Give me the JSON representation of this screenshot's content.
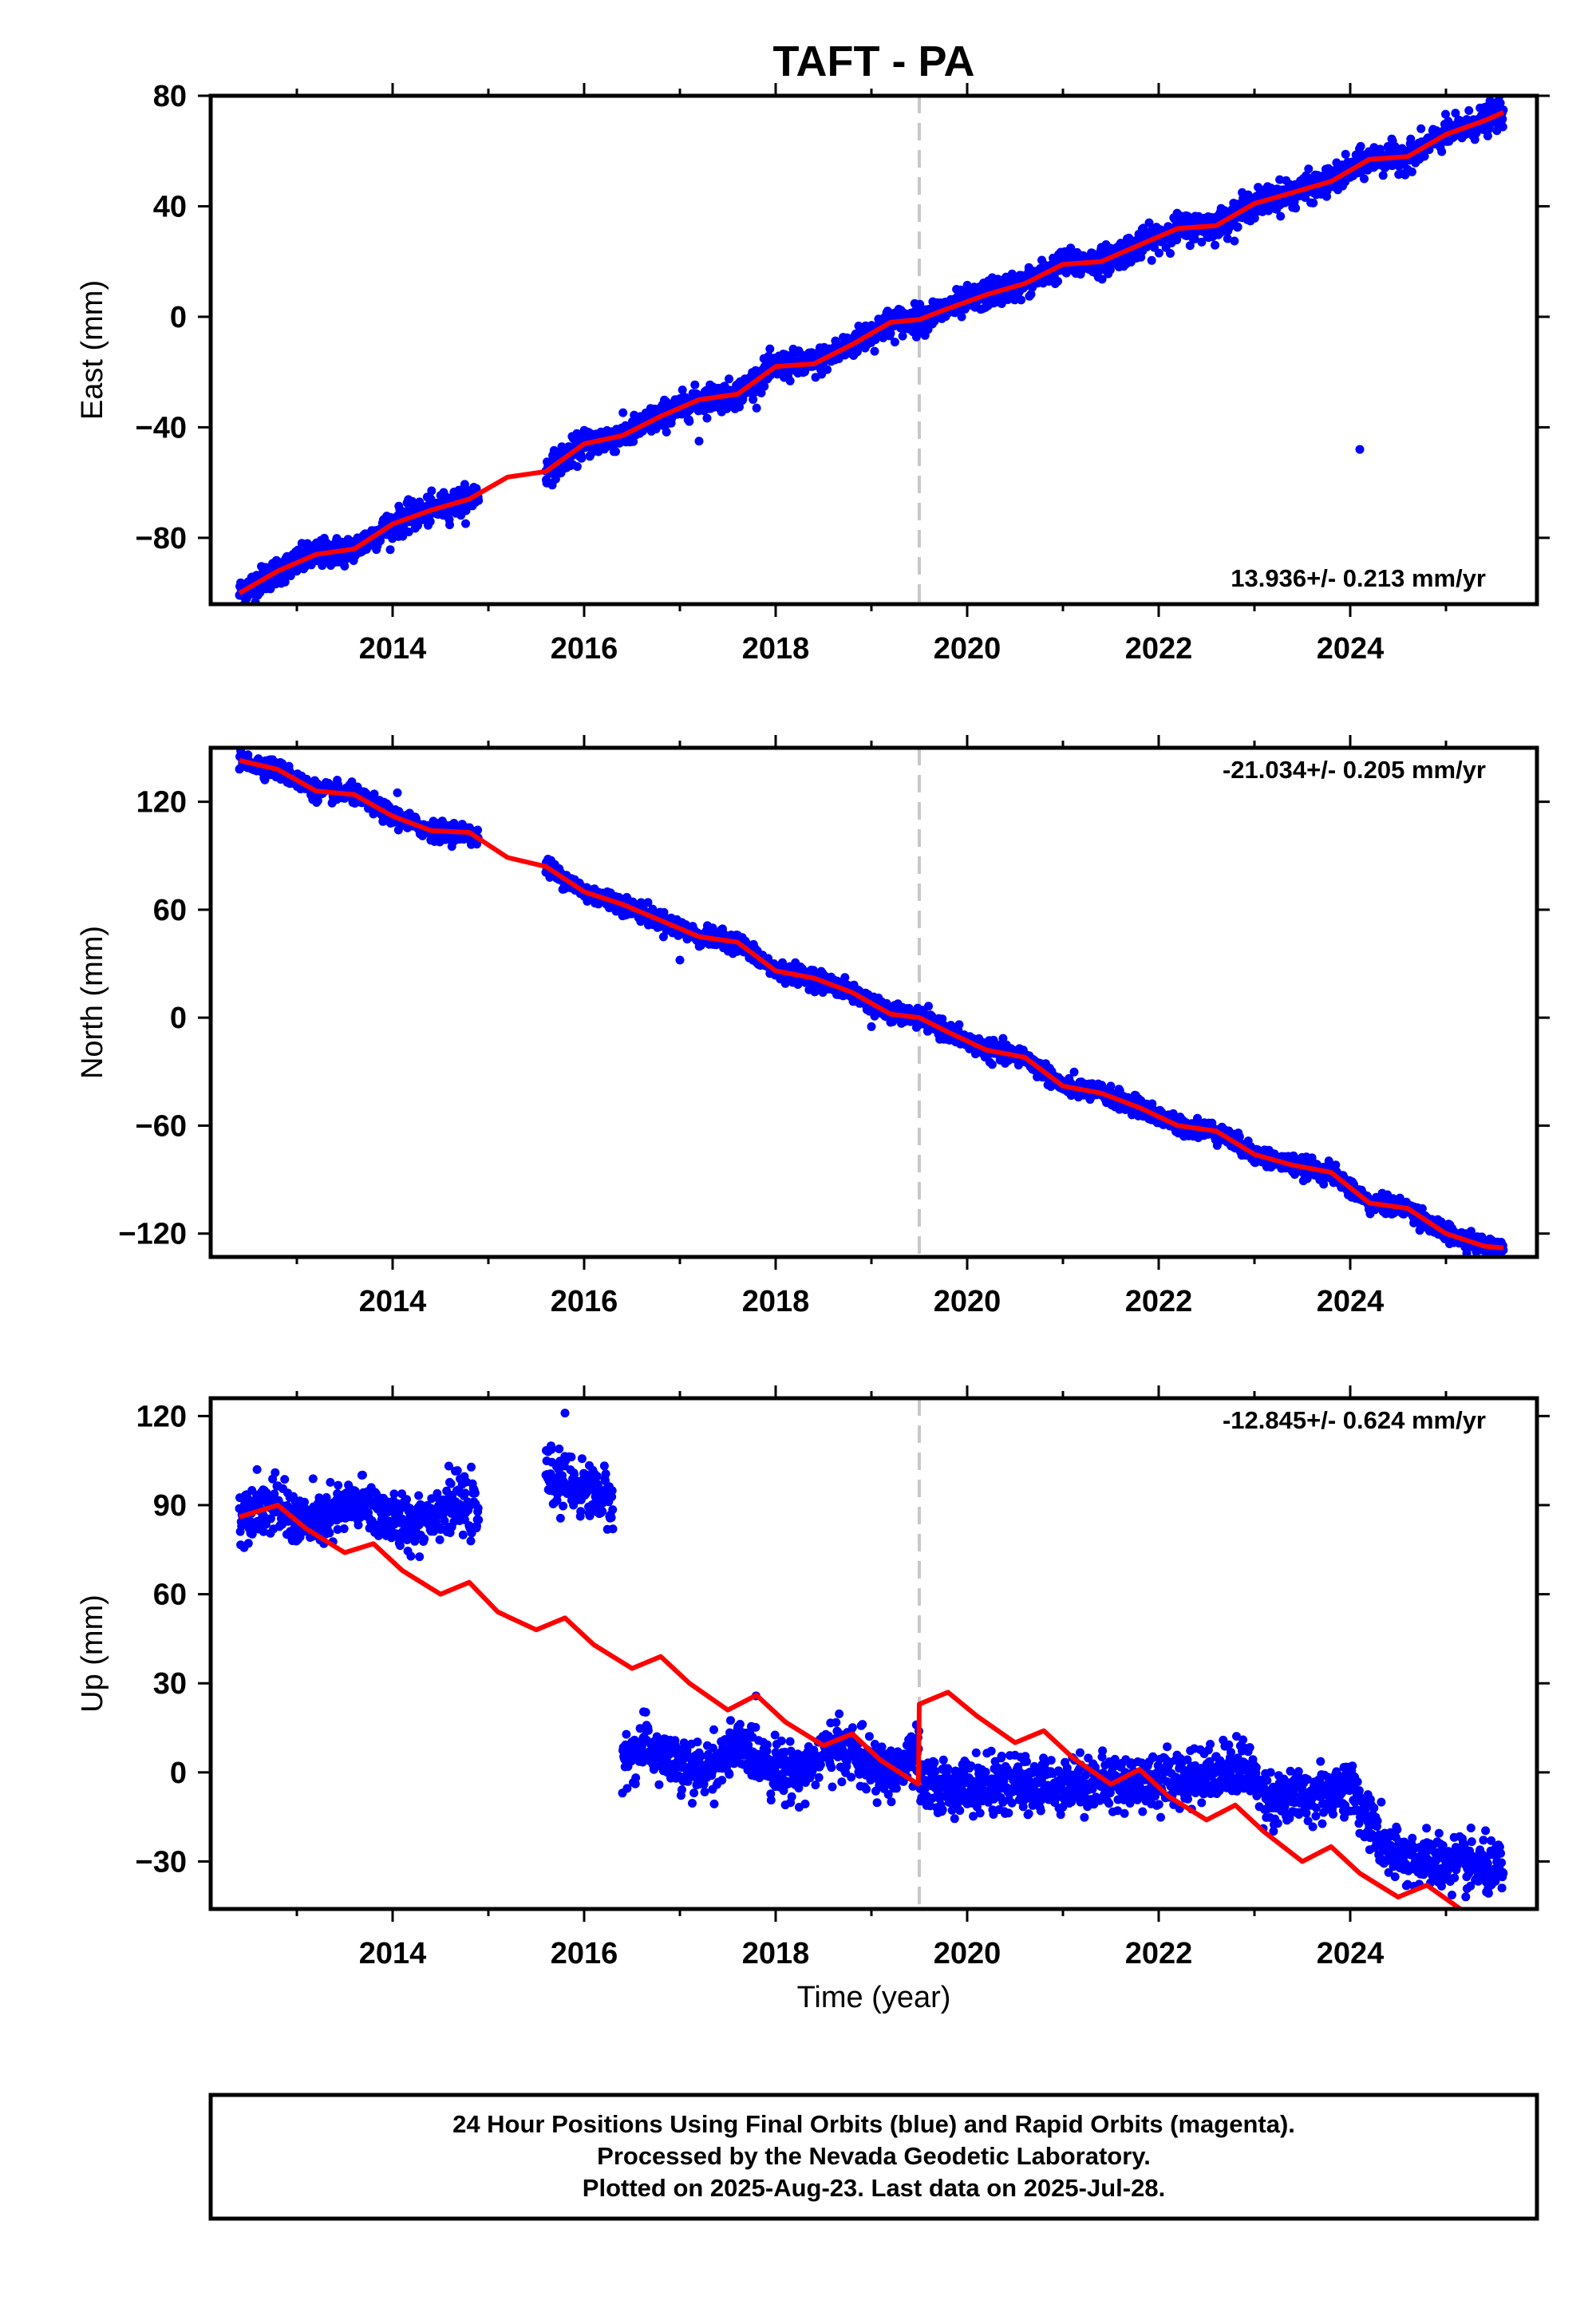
{
  "title": "TAFT - PA",
  "xlabel": "Time (year)",
  "footer": {
    "line1": "24 Hour Positions Using Final Orbits (blue) and Rapid Orbits (magenta).",
    "line2": "Processed by the Nevada Geodetic Laboratory.",
    "line3": "Plotted on 2025-Aug-23. Last data on 2025-Jul-28."
  },
  "colors": {
    "data": "#0000ff",
    "model": "#ff0000",
    "step": "#c8c8c8",
    "frame": "#000000"
  },
  "chart_data": [
    {
      "type": "scatter",
      "ylabel": "East (mm)",
      "rate_label": "13.936+/- 0.213 mm/yr",
      "xlim": [
        2012.1,
        2025.95
      ],
      "ylim": [
        -104,
        80
      ],
      "xticks": [
        2014,
        2016,
        2018,
        2020,
        2022,
        2024
      ],
      "xtick_labels": [
        "2014",
        "2016",
        "2018",
        "2020",
        "2022",
        "2024"
      ],
      "yticks": [
        -80,
        -40,
        0,
        40,
        80
      ],
      "ytick_labels": [
        "−80",
        "−40",
        "0",
        "40",
        "80"
      ],
      "step_epoch": 2019.5,
      "gaps": [
        [
          2014.9,
          2015.6
        ]
      ],
      "outliers": [
        [
          2017.2,
          -45
        ],
        [
          2024.1,
          -48
        ],
        [
          2019.2,
          -6
        ]
      ],
      "series": [
        {
          "role": "model",
          "x": [
            2012.4,
            2012.8,
            2013.2,
            2013.6,
            2014.0,
            2014.4,
            2014.8,
            2015.2,
            2015.6,
            2016.0,
            2016.4,
            2016.8,
            2017.2,
            2017.6,
            2018.0,
            2018.4,
            2018.8,
            2019.2,
            2019.5,
            2019.8,
            2020.2,
            2020.6,
            2021.0,
            2021.4,
            2021.8,
            2022.2,
            2022.6,
            2023.0,
            2023.4,
            2023.8,
            2024.2,
            2024.6,
            2025.0,
            2025.4,
            2025.6
          ],
          "y": [
            -100,
            -92,
            -86,
            -84,
            -75,
            -70,
            -66,
            -58,
            -56,
            -46,
            -43,
            -36,
            -30,
            -28,
            -18,
            -17,
            -10,
            -2,
            -1,
            3,
            8,
            12,
            19,
            20,
            26,
            32,
            33,
            41,
            45,
            49,
            57,
            58,
            66,
            71,
            74
          ]
        },
        {
          "role": "data",
          "segments": [
            [
              2012.4,
              2014.9
            ],
            [
              2015.6,
              2025.6
            ]
          ],
          "scatter_sd": 2.5
        }
      ]
    },
    {
      "type": "scatter",
      "ylabel": "North (mm)",
      "rate_label": "-21.034+/- 0.205 mm/yr",
      "xlim": [
        2012.1,
        2025.95
      ],
      "ylim": [
        -133,
        150
      ],
      "xticks": [
        2014,
        2016,
        2018,
        2020,
        2022,
        2024
      ],
      "xtick_labels": [
        "2014",
        "2016",
        "2018",
        "2020",
        "2022",
        "2024"
      ],
      "yticks": [
        -120,
        -60,
        0,
        60,
        120
      ],
      "ytick_labels": [
        "−120",
        "−60",
        "0",
        "60",
        "120"
      ],
      "step_epoch": 2019.5,
      "gaps": [
        [
          2014.9,
          2015.6
        ]
      ],
      "outliers": [
        [
          2014.05,
          125
        ],
        [
          2017.0,
          32
        ],
        [
          2019.0,
          -5
        ]
      ],
      "series": [
        {
          "role": "model",
          "x": [
            2012.4,
            2012.8,
            2013.2,
            2013.6,
            2014.0,
            2014.4,
            2014.8,
            2015.2,
            2015.6,
            2016.0,
            2016.4,
            2016.8,
            2017.2,
            2017.6,
            2018.0,
            2018.4,
            2018.8,
            2019.2,
            2019.5,
            2019.8,
            2020.2,
            2020.6,
            2021.0,
            2021.4,
            2021.8,
            2022.2,
            2022.6,
            2023.0,
            2023.4,
            2023.8,
            2024.2,
            2024.6,
            2025.0,
            2025.4,
            2025.6
          ],
          "y": [
            143,
            138,
            126,
            124,
            112,
            104,
            103,
            89,
            84,
            70,
            63,
            54,
            45,
            42,
            26,
            22,
            14,
            2,
            0,
            -8,
            -18,
            -22,
            -38,
            -42,
            -50,
            -60,
            -63,
            -76,
            -82,
            -86,
            -103,
            -106,
            -120,
            -127,
            -128
          ]
        },
        {
          "role": "data",
          "segments": [
            [
              2012.4,
              2014.9
            ],
            [
              2015.6,
              2025.6
            ]
          ],
          "scatter_sd": 2.5
        }
      ]
    },
    {
      "type": "scatter",
      "ylabel": "Up (mm)",
      "rate_label": "-12.845+/- 0.624 mm/yr",
      "xlim": [
        2012.1,
        2025.95
      ],
      "ylim": [
        -46,
        126
      ],
      "xticks": [
        2014,
        2016,
        2018,
        2020,
        2022,
        2024
      ],
      "xtick_labels": [
        "2014",
        "2016",
        "2018",
        "2020",
        "2022",
        "2024"
      ],
      "yticks": [
        -30,
        0,
        30,
        60,
        90,
        120
      ],
      "ytick_labels": [
        "−30",
        "0",
        "30",
        "60",
        "90",
        "120"
      ],
      "step_epoch": 2019.5,
      "gaps": [
        [
          2014.9,
          2015.6
        ],
        [
          2016.35,
          2016.4
        ]
      ],
      "outliers": [
        [
          2015.8,
          121
        ],
        [
          2016.3,
          82
        ],
        [
          2012.45,
          76
        ]
      ],
      "series": [
        {
          "role": "model",
          "x": [
            2012.4,
            2012.8,
            2013.1,
            2013.5,
            2013.8,
            2014.1,
            2014.5,
            2014.8,
            2015.1,
            2015.5,
            2015.8,
            2016.1,
            2016.5,
            2016.8,
            2017.1,
            2017.5,
            2017.8,
            2018.1,
            2018.5,
            2018.8,
            2019.1,
            2019.49,
            2019.5,
            2019.8,
            2020.1,
            2020.5,
            2020.8,
            2021.1,
            2021.5,
            2021.8,
            2022.1,
            2022.5,
            2022.8,
            2023.1,
            2023.5,
            2023.8,
            2024.1,
            2024.5,
            2024.8,
            2025.15
          ],
          "y": [
            86,
            90,
            82,
            74,
            77,
            68,
            60,
            64,
            54,
            48,
            52,
            43,
            35,
            39,
            30,
            21,
            26,
            17,
            9,
            13,
            4,
            -4,
            23,
            27,
            19,
            10,
            14,
            5,
            -4,
            1,
            -8,
            -16,
            -11,
            -20,
            -30,
            -25,
            -34,
            -42,
            -38,
            -46
          ]
        },
        {
          "role": "data",
          "segments": [
            [
              2012.4,
              2014.9
            ],
            [
              2015.6,
              2016.3
            ],
            [
              2016.4,
              2025.6
            ]
          ],
          "scatter_sd": 4.5
        }
      ]
    }
  ]
}
